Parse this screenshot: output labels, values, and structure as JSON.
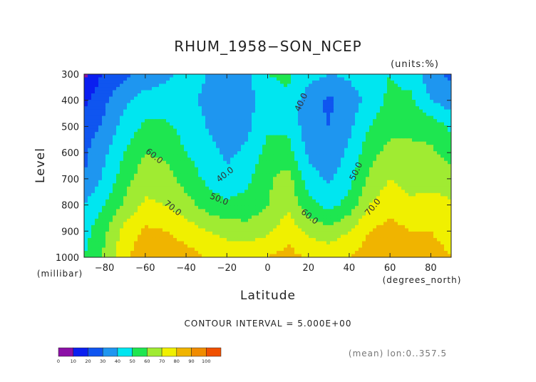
{
  "chart_data": {
    "type": "heatmap",
    "title": "RHUM_1958−SON_NCEP",
    "units_label": "(units:%)",
    "xlabel": "Latitude",
    "ylabel": "Level",
    "x_unit_label": "(degrees_north)",
    "y_unit_label": "(millibar)",
    "xlim": [
      -90,
      90
    ],
    "ylim": [
      1000,
      300
    ],
    "x_ticks": [
      -80,
      -60,
      -40,
      -20,
      0,
      20,
      40,
      60,
      80
    ],
    "y_ticks": [
      300,
      400,
      500,
      600,
      700,
      800,
      900,
      1000
    ],
    "contour_interval_label": "CONTOUR INTERVAL = 5.000E+00",
    "footer_note": "(mean) lon:0..357.5",
    "contour_labels": [
      "60.0",
      "70.0",
      "40.0",
      "50.0",
      "40.0",
      "60.0",
      "50.0",
      "70.0"
    ],
    "colorbar": {
      "ticks": [
        "0",
        "10",
        "20",
        "30",
        "40",
        "50",
        "60",
        "70",
        "80",
        "90",
        "100"
      ],
      "colors": [
        "#8c0fa6",
        "#0a1ef0",
        "#0f55f0",
        "#1e96f0",
        "#00e6f0",
        "#1ee650",
        "#a0eb32",
        "#f0f000",
        "#f0b400",
        "#f08c00",
        "#f05000"
      ]
    },
    "lat": [
      -90,
      -80,
      -70,
      -60,
      -50,
      -40,
      -30,
      -20,
      -10,
      0,
      10,
      20,
      30,
      40,
      50,
      60,
      70,
      80,
      90
    ],
    "levels": [
      300,
      400,
      500,
      600,
      700,
      800,
      900,
      1000
    ],
    "values": [
      [
        8,
        22,
        28,
        32,
        38,
        44,
        40,
        34,
        38,
        50,
        52,
        44,
        40,
        42,
        48,
        50,
        46,
        34,
        28
      ],
      [
        18,
        28,
        38,
        45,
        45,
        43,
        38,
        30,
        36,
        46,
        48,
        34,
        28,
        34,
        44,
        52,
        52,
        40,
        34
      ],
      [
        24,
        32,
        44,
        52,
        52,
        46,
        40,
        32,
        38,
        48,
        48,
        34,
        30,
        38,
        50,
        56,
        58,
        56,
        48
      ],
      [
        28,
        38,
        50,
        60,
        58,
        50,
        44,
        38,
        42,
        54,
        54,
        38,
        34,
        42,
        56,
        64,
        62,
        62,
        56
      ],
      [
        30,
        42,
        56,
        66,
        64,
        56,
        48,
        42,
        48,
        58,
        64,
        44,
        38,
        46,
        62,
        70,
        66,
        66,
        64
      ],
      [
        40,
        50,
        62,
        72,
        70,
        64,
        56,
        52,
        54,
        60,
        68,
        54,
        46,
        54,
        70,
        76,
        72,
        74,
        72
      ],
      [
        46,
        58,
        74,
        82,
        80,
        76,
        70,
        66,
        64,
        68,
        76,
        68,
        64,
        70,
        80,
        84,
        80,
        80,
        76
      ],
      [
        50,
        62,
        78,
        86,
        86,
        84,
        80,
        78,
        78,
        80,
        84,
        78,
        76,
        80,
        86,
        88,
        86,
        84,
        80
      ]
    ]
  }
}
